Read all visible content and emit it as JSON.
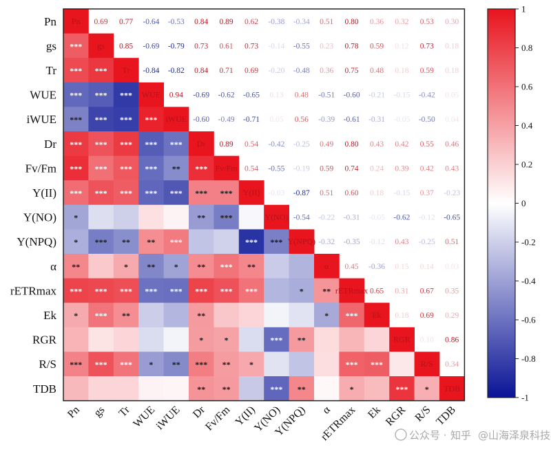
{
  "chart_data": {
    "type": "heatmap",
    "variables": [
      "Pn",
      "gs",
      "Tr",
      "WUE",
      "iWUE",
      "Dr",
      "Fv/Fm",
      "Y(II)",
      "Y(NO)",
      "Y(NPQ)",
      "α",
      "rETRmax",
      "Ek",
      "RGR",
      "R/S",
      "TDB"
    ],
    "upper_triangle_correlations": [
      [
        null,
        0.69,
        0.77,
        -0.64,
        -0.53,
        0.84,
        0.89,
        0.62,
        -0.38,
        -0.34,
        0.51,
        0.8,
        0.36,
        0.32,
        0.53,
        0.3
      ],
      [
        null,
        null,
        0.85,
        -0.69,
        -0.79,
        0.73,
        0.61,
        0.73,
        -0.14,
        -0.55,
        0.23,
        0.78,
        0.59,
        0.12,
        0.73,
        0.18
      ],
      [
        null,
        null,
        null,
        -0.84,
        -0.82,
        0.84,
        0.71,
        0.69,
        -0.2,
        -0.48,
        0.36,
        0.75,
        0.48,
        0.18,
        0.59,
        0.18
      ],
      [
        null,
        null,
        null,
        null,
        0.94,
        -0.69,
        -0.62,
        -0.65,
        0.13,
        0.48,
        -0.51,
        -0.6,
        -0.21,
        -0.15,
        -0.42,
        0.05
      ],
      [
        null,
        null,
        null,
        null,
        null,
        -0.6,
        -0.49,
        -0.71,
        0.05,
        0.56,
        -0.39,
        -0.61,
        -0.31,
        -0.05,
        -0.5,
        0.04
      ],
      [
        null,
        null,
        null,
        null,
        null,
        null,
        0.89,
        0.54,
        -0.42,
        -0.25,
        0.49,
        0.8,
        0.43,
        0.42,
        0.55,
        0.46
      ],
      [
        null,
        null,
        null,
        null,
        null,
        null,
        null,
        0.54,
        -0.55,
        -0.19,
        0.59,
        0.74,
        0.24,
        0.39,
        0.42,
        0.43
      ],
      [
        null,
        null,
        null,
        null,
        null,
        null,
        null,
        null,
        -0.03,
        -0.87,
        0.51,
        0.6,
        0.18,
        -0.15,
        0.37,
        -0.23
      ],
      [
        null,
        null,
        null,
        null,
        null,
        null,
        null,
        null,
        null,
        -0.54,
        -0.22,
        -0.31,
        -0.05,
        -0.62,
        -0.12,
        -0.65
      ],
      [
        null,
        null,
        null,
        null,
        null,
        null,
        null,
        null,
        null,
        null,
        -0.32,
        -0.35,
        -0.12,
        0.43,
        -0.25,
        0.51
      ],
      [
        null,
        null,
        null,
        null,
        null,
        null,
        null,
        null,
        null,
        null,
        null,
        0.45,
        -0.36,
        0.15,
        0.14,
        0.03
      ],
      [
        null,
        null,
        null,
        null,
        null,
        null,
        null,
        null,
        null,
        null,
        null,
        null,
        0.65,
        0.31,
        0.67,
        0.35
      ],
      [
        null,
        null,
        null,
        null,
        null,
        null,
        null,
        null,
        null,
        null,
        null,
        null,
        null,
        0.18,
        0.69,
        0.29
      ],
      [
        null,
        null,
        null,
        null,
        null,
        null,
        null,
        null,
        null,
        null,
        null,
        null,
        null,
        null,
        0.1,
        0.86
      ],
      [
        null,
        null,
        null,
        null,
        null,
        null,
        null,
        null,
        null,
        null,
        null,
        null,
        null,
        null,
        null,
        0.34
      ],
      [
        null,
        null,
        null,
        null,
        null,
        null,
        null,
        null,
        null,
        null,
        null,
        null,
        null,
        null,
        null,
        null
      ]
    ],
    "lower_triangle_significance": [
      [],
      [
        "***"
      ],
      [
        "***",
        "***"
      ],
      [
        "***",
        "***",
        "***"
      ],
      [
        "***",
        "***",
        "***",
        "***"
      ],
      [
        "***",
        "***",
        "***",
        "***",
        "***"
      ],
      [
        "***",
        "***",
        "***",
        "***",
        "**",
        "***"
      ],
      [
        "***",
        "***",
        "***",
        "***",
        "***",
        "***",
        "***"
      ],
      [
        "*",
        "",
        "",
        "",
        "",
        "**",
        "***",
        ""
      ],
      [
        "*",
        "***",
        "**",
        "**",
        "***",
        "",
        "",
        "***",
        "***"
      ],
      [
        "**",
        "",
        "*",
        "**",
        "*",
        "**",
        "***",
        "**",
        "",
        ""
      ],
      [
        "***",
        "***",
        "***",
        "***",
        "***",
        "***",
        "***",
        "***",
        "",
        "*",
        "**"
      ],
      [
        "*",
        "***",
        "**",
        "",
        "",
        "**",
        "",
        "",
        "",
        "",
        "*",
        "***"
      ],
      [
        "",
        "",
        "",
        "",
        "",
        "*",
        "*",
        "",
        "***",
        "**",
        "",
        "",
        "",
        ""
      ],
      [
        "***",
        "***",
        "***",
        "*",
        "**",
        "***",
        "**",
        "*",
        "",
        "",
        "",
        "***",
        "***",
        ""
      ],
      [
        "",
        "",
        "",
        "",
        "",
        "**",
        "**",
        "",
        "***",
        "**",
        "",
        "*",
        "",
        "***",
        "*"
      ]
    ],
    "colorbar": {
      "range": [
        -1,
        1
      ],
      "ticks": [
        "1",
        "0.8",
        "0.6",
        "0.4",
        "0.2",
        "0",
        "-0.2",
        "-0.4",
        "-0.6",
        "-0.8",
        "-1"
      ],
      "colors": {
        "negative": "#0a1496",
        "zero": "#ffffff",
        "positive": "#e8141e"
      }
    }
  },
  "watermark": {
    "platform": "知乎",
    "separator": "公众号 · ",
    "author": "@山海泽泉科技"
  }
}
